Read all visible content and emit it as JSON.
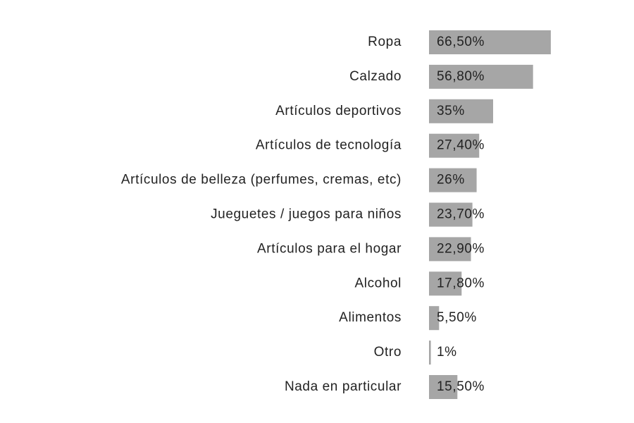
{
  "chart_data": {
    "type": "bar",
    "orientation": "horizontal",
    "categories": [
      "Ropa",
      "Calzado",
      "Artículos deportivos",
      "Artículos de tecnología",
      "Artículos de belleza (perfumes, cremas, etc)",
      "Jueguetes / juegos para niños",
      "Artículos para el hogar",
      "Alcohol",
      "Alimentos",
      "Otro",
      "Nada en particular"
    ],
    "values": [
      66.5,
      56.8,
      35,
      27.4,
      26,
      23.7,
      22.9,
      17.8,
      5.5,
      1,
      15.5
    ],
    "value_labels": [
      "66,50%",
      "56,80%",
      "35%",
      "27,40%",
      "26%",
      "23,70%",
      "22,90%",
      "17,80%",
      "5,50%",
      "1%",
      "15,50%"
    ],
    "title": "",
    "xlabel": "",
    "ylabel": "",
    "xlim": [
      0,
      100
    ],
    "grid": false,
    "legend": "none",
    "bar_color": "#a6a6a6"
  }
}
